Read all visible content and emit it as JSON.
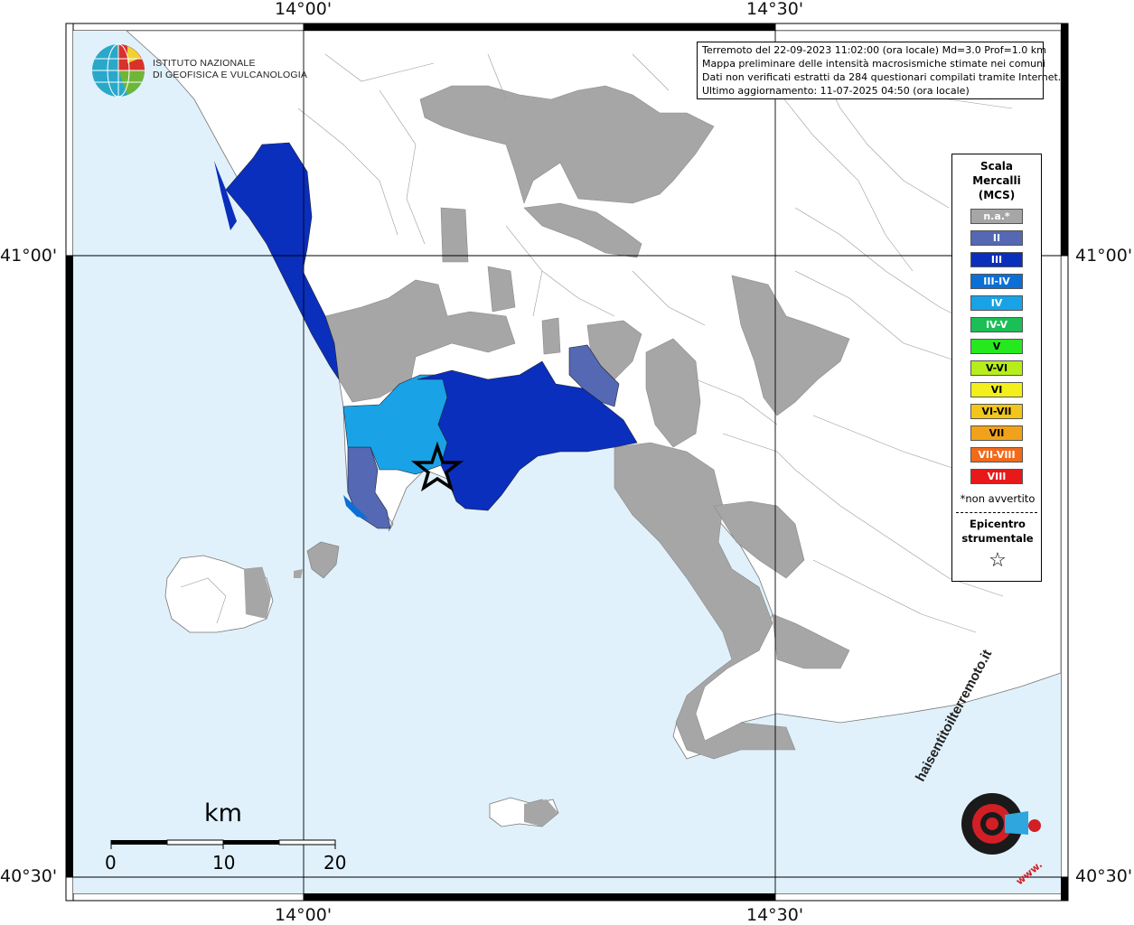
{
  "logo": {
    "line1": "ISTITUTO NAZIONALE",
    "line2": "DI GEOFISICA E VULCANOLOGIA"
  },
  "info": {
    "line1": "Terremoto del 22-09-2023 11:02:00 (ora locale) Md=3.0 Prof=1.0 km",
    "line2": "Mappa preliminare delle intensità macrosismiche stimate nei comuni",
    "line3": "Dati non verificati estratti da 284 questionari compilati tramite Internet.",
    "line4": "Ultimo aggiornamento: 11-07-2025 04:50 (ora locale)"
  },
  "coords": {
    "top_left": "14°00'",
    "top_right": "14°30'",
    "bottom_left": "14°00'",
    "bottom_right": "14°30'",
    "left_mid": "41°00'",
    "right_mid": "41°00'",
    "left_bottom": "40°30'",
    "right_bottom": "40°30'"
  },
  "legend": {
    "title": [
      "Scala",
      "Mercalli",
      "(MCS)"
    ],
    "items": [
      {
        "label": "n.a.*",
        "color": "#a6a6a6"
      },
      {
        "label": "II",
        "color": "#5468b3"
      },
      {
        "label": "III",
        "color": "#0a2fbd"
      },
      {
        "label": "III-IV",
        "color": "#0b6fd6"
      },
      {
        "label": "IV",
        "color": "#1aa2e6"
      },
      {
        "label": "IV-V",
        "color": "#1bbf55"
      },
      {
        "label": "V",
        "color": "#26e81f"
      },
      {
        "label": "V-VI",
        "color": "#b6ed1a"
      },
      {
        "label": "VI",
        "color": "#f2ef1a"
      },
      {
        "label": "VI-VII",
        "color": "#f2c51a"
      },
      {
        "label": "VII",
        "color": "#f2a21a"
      },
      {
        "label": "VII-VIII",
        "color": "#f26a1a"
      },
      {
        "label": "VIII",
        "color": "#e8191a"
      }
    ],
    "note": "*non avvertito",
    "epicentre1": "Epicentro",
    "epicentre2": "strumentale",
    "star": "☆"
  },
  "scale": {
    "unit": "km",
    "ticks": [
      "0",
      "10",
      "20"
    ]
  },
  "brand": {
    "text": "haisentitoilterremoto.it",
    "url": "www."
  },
  "colors": {
    "sea": "#e0f1fb",
    "land": "#ffffff",
    "na": "#a6a6a6",
    "ii": "#5468b3",
    "iii": "#0a2fbd",
    "iiiiv": "#0b6fd6",
    "iv": "#1aa2e6"
  }
}
